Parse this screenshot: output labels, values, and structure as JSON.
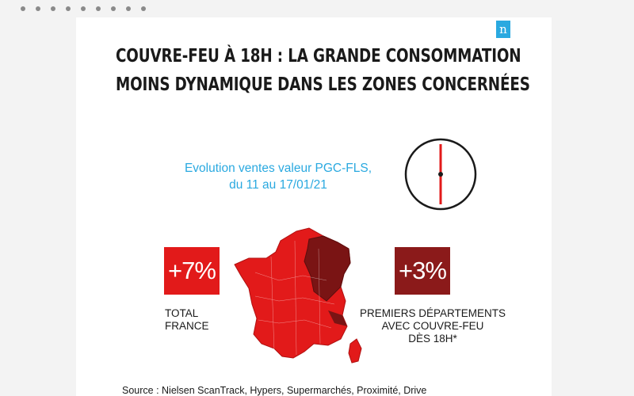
{
  "window_dots": 9,
  "logo": {
    "letter": "n"
  },
  "title": {
    "line1": "COUVRE-FEU À 18H : LA GRANDE CONSOMMATION",
    "line2": "MOINS DYNAMIQUE DANS LES ZONES CONCERNÉES"
  },
  "subtitle": {
    "line1": "Evolution ventes valeur PGC-FLS,",
    "line2": "du 11 au 17/01/21"
  },
  "clock": {
    "icon": "clock-icon",
    "time_shown": "18:00"
  },
  "total": {
    "value": "+7%",
    "label_line1": "TOTAL",
    "label_line2": "FRANCE",
    "color": "#e21a1a"
  },
  "curfew": {
    "value": "+3%",
    "label_line1": "PREMIERS DÉPARTEMENTS",
    "label_line2": "AVEC COUVRE-FEU",
    "label_line3": "DÈS 18H*",
    "color": "#8b1a1a"
  },
  "map": {
    "icon": "france-map-icon",
    "base_color": "#e21a1a",
    "highlight_color": "#7a1414"
  },
  "source": "Source : Nielsen ScanTrack, Hypers, Supermarchés, Proximité, Drive"
}
